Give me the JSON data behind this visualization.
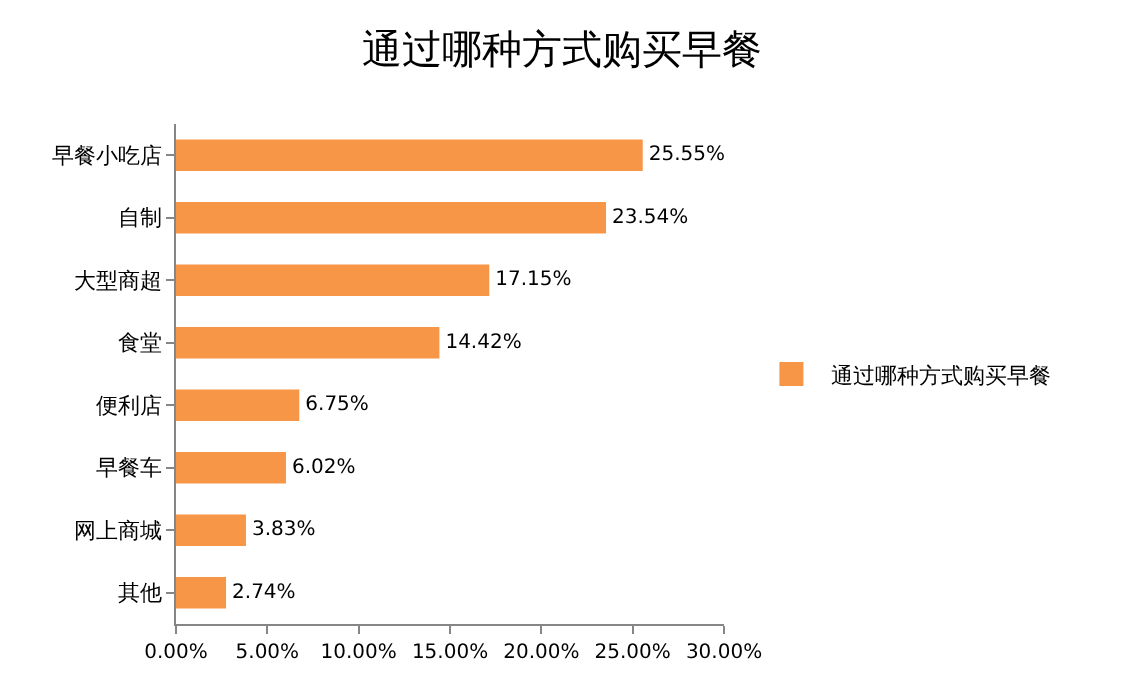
{
  "chart_data": {
    "type": "bar",
    "orientation": "horizontal",
    "title": "通过哪种方式购买早餐",
    "categories": [
      "早餐小吃店",
      "自制",
      "大型商超",
      "食堂",
      "便利店",
      "早餐车",
      "网上商城",
      "其他"
    ],
    "series": [
      {
        "name": "通过哪种方式购买早餐",
        "color": "#f79646",
        "values": [
          25.55,
          23.54,
          17.15,
          14.42,
          6.75,
          6.02,
          3.83,
          2.74
        ],
        "value_labels": [
          "25.55%",
          "23.54%",
          "17.15%",
          "14.42%",
          "6.75%",
          "6.02%",
          "3.83%",
          "2.74%"
        ]
      }
    ],
    "xlim": [
      0,
      30
    ],
    "xticks": [
      {
        "value": 0,
        "label": "0.00%"
      },
      {
        "value": 5,
        "label": "5.00%"
      },
      {
        "value": 10,
        "label": "10.00%"
      },
      {
        "value": 15,
        "label": "15.00%"
      },
      {
        "value": 20,
        "label": "20.00%"
      },
      {
        "value": 25,
        "label": "25.00%"
      },
      {
        "value": 30,
        "label": "30.00%"
      }
    ],
    "legend": "right"
  }
}
